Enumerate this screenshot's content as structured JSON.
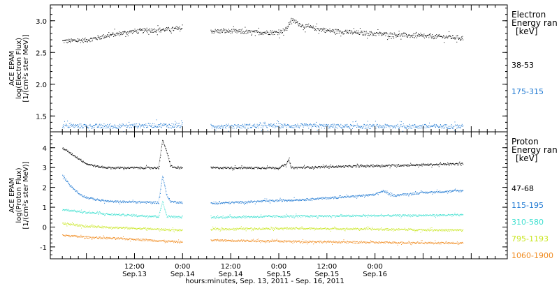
{
  "chart_data": [
    {
      "type": "scatter",
      "panel": "electron",
      "ylabel_lines": [
        "ACE EPAM",
        "log(Electron Flux)",
        "[1/(cm²s ster MeV)]"
      ],
      "ylim": [
        1.25,
        3.25
      ],
      "yticks": [
        1.5,
        2.0,
        2.5,
        3.0
      ],
      "ytick_labels": [
        "1.5",
        "2.0",
        "2.5",
        "3.0"
      ],
      "legend_title_lines": [
        "Electron",
        "Energy ran",
        "[keV]"
      ],
      "series": [
        {
          "name": "38-53",
          "color": "#000000",
          "segments": [
            {
              "x": [
                -6,
                0,
                6,
                12,
                18,
                24
              ],
              "y": [
                2.68,
                2.7,
                2.78,
                2.84,
                2.86,
                2.88
              ]
            },
            {
              "x": [
                31,
                36,
                42,
                48,
                50,
                51,
                54,
                60,
                66,
                72,
                78,
                84,
                90,
                94
              ],
              "y": [
                2.84,
                2.84,
                2.82,
                2.82,
                2.88,
                3.02,
                2.92,
                2.85,
                2.82,
                2.8,
                2.78,
                2.76,
                2.75,
                2.73
              ]
            }
          ]
        },
        {
          "name": "175-315",
          "color": "#1e78d2",
          "segments": [
            {
              "x": [
                -6,
                6,
                18,
                24
              ],
              "y": [
                1.35,
                1.34,
                1.36,
                1.35
              ]
            },
            {
              "x": [
                31,
                48,
                66,
                94
              ],
              "y": [
                1.34,
                1.35,
                1.34,
                1.34
              ]
            }
          ]
        }
      ]
    },
    {
      "type": "scatter",
      "panel": "proton",
      "ylabel_lines": [
        "ACE EPAM",
        "log(Proton Flux)",
        "[1/(cm²s ster MeV)]"
      ],
      "ylim": [
        -1.6,
        4.8
      ],
      "yticks": [
        -1,
        0,
        1,
        2,
        3,
        4
      ],
      "ytick_labels": [
        "-1",
        "0",
        "1",
        "2",
        "3",
        "4"
      ],
      "legend_title_lines": [
        "Proton",
        "Energy ran",
        "[keV]"
      ],
      "series": [
        {
          "name": "47-68",
          "color": "#000000",
          "segments": [
            {
              "x": [
                -6,
                -3,
                0,
                3,
                6,
                12,
                18,
                19,
                20,
                21,
                22,
                24
              ],
              "y": [
                4.0,
                3.6,
                3.2,
                3.05,
                3.0,
                3.0,
                3.0,
                4.4,
                3.8,
                3.1,
                3.0,
                3.0
              ]
            },
            {
              "x": [
                31,
                42,
                48,
                50,
                50.5,
                51,
                60,
                72,
                84,
                94
              ],
              "y": [
                3.0,
                3.0,
                3.0,
                3.2,
                3.45,
                3.0,
                3.05,
                3.1,
                3.15,
                3.2
              ]
            }
          ]
        },
        {
          "name": "115-195",
          "color": "#1e78d2",
          "segments": [
            {
              "x": [
                -6,
                -4,
                -2,
                0,
                3,
                6,
                12,
                18,
                19,
                20,
                21,
                24
              ],
              "y": [
                2.6,
                2.1,
                1.7,
                1.5,
                1.38,
                1.3,
                1.28,
                1.25,
                2.6,
                1.6,
                1.3,
                1.25
              ]
            },
            {
              "x": [
                31,
                42,
                54,
                66,
                72,
                74,
                76,
                84,
                94
              ],
              "y": [
                1.2,
                1.3,
                1.4,
                1.55,
                1.65,
                1.85,
                1.6,
                1.75,
                1.85
              ]
            }
          ]
        },
        {
          "name": "310-580",
          "color": "#3fe0d0",
          "segments": [
            {
              "x": [
                -6,
                0,
                6,
                12,
                18,
                19,
                20,
                24
              ],
              "y": [
                0.9,
                0.75,
                0.65,
                0.6,
                0.55,
                1.3,
                0.55,
                0.5
              ]
            },
            {
              "x": [
                31,
                48,
                66,
                94
              ],
              "y": [
                0.5,
                0.55,
                0.58,
                0.62
              ]
            }
          ]
        },
        {
          "name": "795-1193",
          "color": "#c8e61e",
          "segments": [
            {
              "x": [
                -6,
                0,
                12,
                24
              ],
              "y": [
                0.2,
                0.05,
                -0.05,
                -0.15
              ]
            },
            {
              "x": [
                31,
                48,
                66,
                94
              ],
              "y": [
                -0.1,
                -0.05,
                -0.08,
                -0.15
              ]
            }
          ]
        },
        {
          "name": "1060-1900",
          "color": "#f08a1e",
          "segments": [
            {
              "x": [
                -6,
                0,
                12,
                24
              ],
              "y": [
                -0.4,
                -0.5,
                -0.6,
                -0.75
              ]
            },
            {
              "x": [
                31,
                48,
                66,
                94
              ],
              "y": [
                -0.65,
                -0.7,
                -0.75,
                -0.8
              ]
            }
          ]
        }
      ]
    }
  ],
  "x_axis": {
    "label": "hours:minutes, Sep. 13, 2011 - Sep. 16, 2011",
    "units": "hours since Sep. 13 00:00",
    "xlim": [
      -9,
      105
    ],
    "ticks": [
      {
        "x": 12,
        "time": "12:00",
        "date": "Sep.13"
      },
      {
        "x": 24,
        "time": "0:00",
        "date": "Sep.14"
      },
      {
        "x": 36,
        "time": "12:00",
        "date": "Sep.14"
      },
      {
        "x": 48,
        "time": "0:00",
        "date": "Sep.15"
      },
      {
        "x": 60,
        "time": "12:00",
        "date": "Sep.15"
      },
      {
        "x": 72,
        "time": "0:00",
        "date": "Sep.16"
      }
    ]
  }
}
